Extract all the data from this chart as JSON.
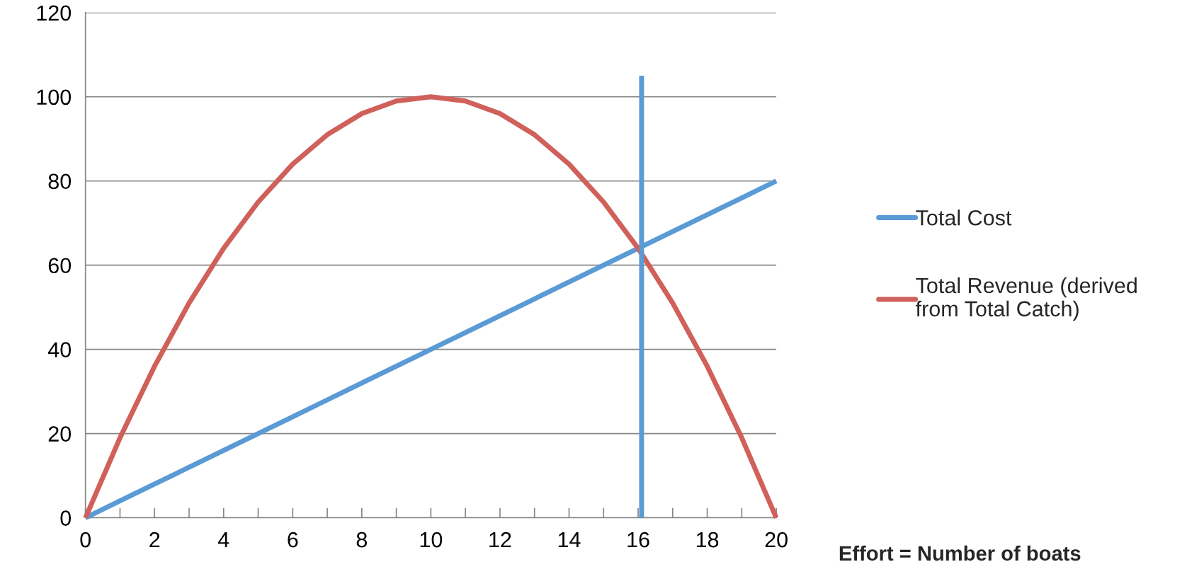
{
  "chart_data": {
    "type": "line",
    "xlabel": "Effort = Number of boats",
    "x": [
      0,
      1,
      2,
      3,
      4,
      5,
      6,
      7,
      8,
      9,
      10,
      11,
      12,
      13,
      14,
      15,
      16,
      17,
      18,
      19,
      20
    ],
    "series": [
      {
        "name": "Total Cost",
        "color": "#5b9bd5",
        "values": [
          0,
          4,
          8,
          12,
          16,
          20,
          24,
          28,
          32,
          36,
          40,
          44,
          48,
          52,
          56,
          60,
          64,
          68,
          72,
          76,
          80
        ]
      },
      {
        "name": "Total Revenue (derived from Total Catch)",
        "color": "#d0605a",
        "values": [
          0,
          19,
          36,
          51,
          64,
          75,
          84,
          91,
          96,
          99,
          100,
          99,
          96,
          91,
          84,
          75,
          64,
          51,
          36,
          19,
          0
        ]
      },
      {
        "color": "#5b9bd5",
        "x": [
          16.1,
          16.1
        ],
        "values": [
          105,
          0
        ]
      }
    ],
    "xlim": [
      0,
      20
    ],
    "ylim": [
      0,
      120
    ],
    "xticks": [
      0,
      {
        "value": 1,
        "label": null
      },
      2,
      {
        "value": 3,
        "label": null
      },
      4,
      {
        "value": 5,
        "label": null
      },
      6,
      {
        "value": 7,
        "label": null
      },
      8,
      {
        "value": 9,
        "label": null
      },
      10,
      {
        "value": 11,
        "label": null
      },
      12,
      {
        "value": 13,
        "label": null
      },
      14,
      {
        "value": 15,
        "label": null
      },
      16,
      {
        "value": 17,
        "label": null
      },
      18,
      {
        "value": 19,
        "label": null
      },
      20
    ],
    "yticks": [
      0,
      20,
      40,
      60,
      80,
      100,
      120
    ],
    "grid": "y",
    "legend": "right",
    "marker": "none",
    "line_style": "solid"
  }
}
